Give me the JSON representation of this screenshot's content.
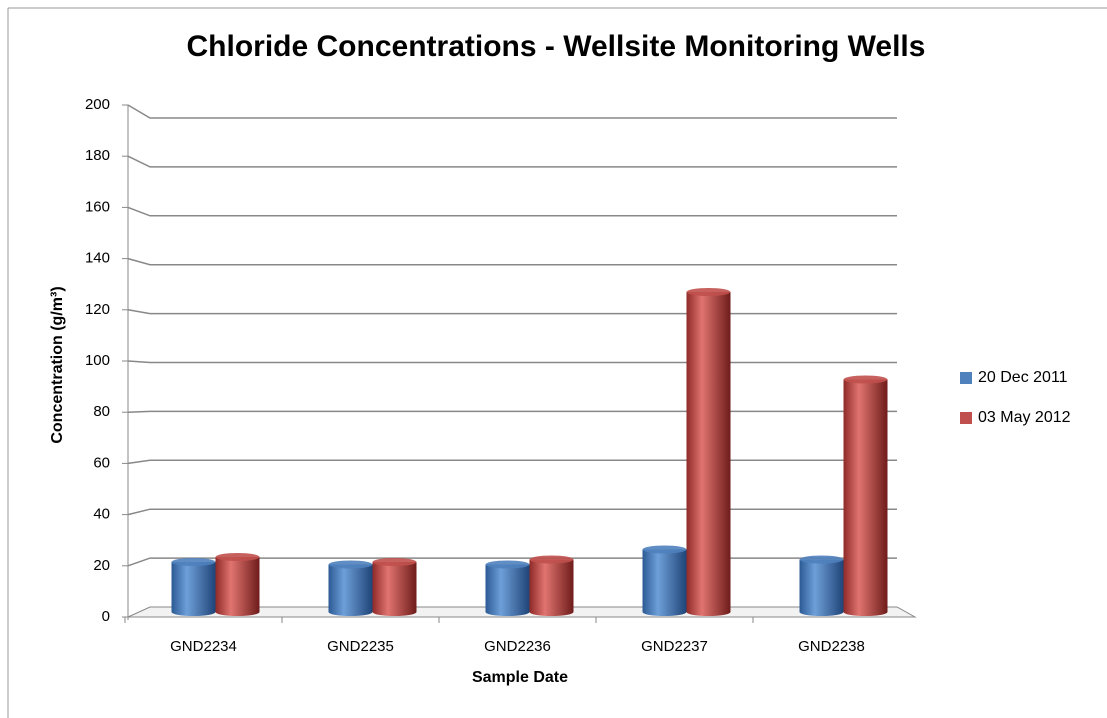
{
  "chart_data": {
    "type": "bar",
    "title": "Chloride Concentrations - Wellsite Monitoring Wells",
    "x_label": "Sample Date",
    "y_label": "Concentration (g/m³)",
    "categories": [
      "GND2234",
      "GND2235",
      "GND2236",
      "GND2237",
      "GND2238"
    ],
    "series": [
      {
        "name": "20 Dec 2011",
        "color": "#4f81bd",
        "values": [
          20,
          19,
          19,
          25,
          21
        ]
      },
      {
        "name": "03 May 2012",
        "color": "#c0504d",
        "values": [
          22,
          20,
          21,
          128,
          93
        ]
      }
    ],
    "ylim": [
      0,
      200
    ],
    "yticks": [
      0,
      20,
      40,
      60,
      80,
      100,
      120,
      140,
      160,
      180,
      200
    ],
    "grid": true,
    "legend": "right"
  }
}
